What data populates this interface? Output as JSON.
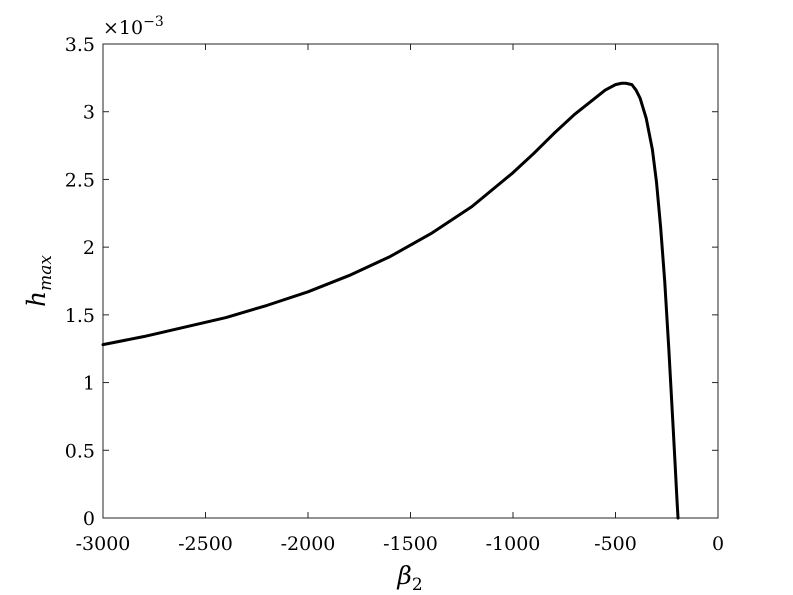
{
  "chart_data": {
    "type": "line",
    "title": "",
    "xlabel_base": "β",
    "xlabel_sub": "2",
    "ylabel_base": "h",
    "ylabel_sub": "max",
    "y_multiplier_base": "×10",
    "y_multiplier_exp": "−3",
    "xlim": [
      -3000,
      0
    ],
    "ylim": [
      0,
      3.5
    ],
    "xticks": [
      -3000,
      -2500,
      -2000,
      -1500,
      -1000,
      -500,
      0
    ],
    "xtick_labels": [
      "-3000",
      "-2500",
      "-2000",
      "-1500",
      "-1000",
      "-500",
      "0"
    ],
    "yticks": [
      0,
      0.5,
      1,
      1.5,
      2,
      2.5,
      3,
      3.5
    ],
    "ytick_labels": [
      "0",
      "0.5",
      "1",
      "1.5",
      "2",
      "2.5",
      "3",
      "3.5"
    ],
    "grid": false,
    "line_color": "#000000",
    "series": [
      {
        "x": [
          -3000,
          -2800,
          -2600,
          -2400,
          -2200,
          -2000,
          -1800,
          -1600,
          -1400,
          -1200,
          -1000,
          -900,
          -800,
          -700,
          -600,
          -550,
          -500,
          -470,
          -450,
          -420,
          -400,
          -380,
          -350,
          -320,
          -300,
          -280,
          -260,
          -240,
          -220,
          -210,
          -200,
          -195
        ],
        "y": [
          1.28,
          1.34,
          1.41,
          1.48,
          1.57,
          1.67,
          1.79,
          1.93,
          2.1,
          2.3,
          2.55,
          2.69,
          2.84,
          2.98,
          3.1,
          3.16,
          3.2,
          3.21,
          3.21,
          3.2,
          3.16,
          3.1,
          2.95,
          2.72,
          2.48,
          2.15,
          1.75,
          1.25,
          0.7,
          0.42,
          0.13,
          0
        ]
      }
    ]
  }
}
